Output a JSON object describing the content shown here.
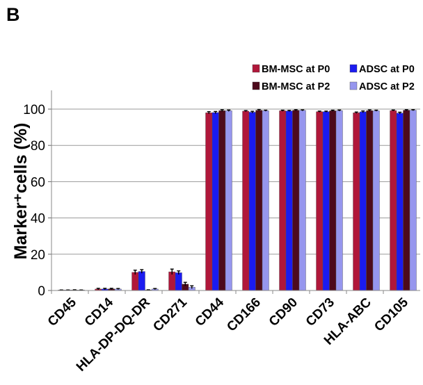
{
  "panel_label": "B",
  "chart_data": {
    "type": "bar",
    "title": "",
    "xlabel": "",
    "ylabel": "Marker⁺cells (%)",
    "ylim": [
      0,
      100
    ],
    "yticks": [
      0,
      20,
      40,
      60,
      80,
      100
    ],
    "grid": true,
    "legend_position": "top-right",
    "error_bars": true,
    "categories": [
      "CD45",
      "CD14",
      "HLA-DP-DQ-DR",
      "CD271",
      "CD44",
      "CD166",
      "CD90",
      "CD73",
      "HLA-ABC",
      "CD105"
    ],
    "series": [
      {
        "name": "BM-MSC at P0",
        "color": "#b0173a",
        "values": [
          0.1,
          0.8,
          10.0,
          10.3,
          98.0,
          98.9,
          99.1,
          98.6,
          98.0,
          99.2
        ],
        "errors": [
          0.2,
          0.4,
          1.2,
          1.5,
          0.6,
          0.3,
          0.3,
          0.3,
          0.4,
          0.3
        ]
      },
      {
        "name": "ADSC at P0",
        "color": "#1b1bf0",
        "values": [
          0.1,
          0.8,
          10.5,
          9.8,
          98.1,
          98.3,
          99.0,
          98.6,
          98.5,
          97.8
        ],
        "errors": [
          0.2,
          0.4,
          1.0,
          1.0,
          0.6,
          0.5,
          0.3,
          0.3,
          0.5,
          0.5
        ]
      },
      {
        "name": "BM-MSC at P2",
        "color": "#4d0a1c",
        "values": [
          0.2,
          0.9,
          0.2,
          3.5,
          99.2,
          99.4,
          99.4,
          99.1,
          99.2,
          99.4
        ],
        "errors": [
          0.2,
          0.3,
          0.2,
          1.0,
          0.5,
          0.4,
          0.3,
          0.3,
          0.4,
          0.3
        ]
      },
      {
        "name": "ADSC at P2",
        "color": "#9696ee",
        "values": [
          0.1,
          0.8,
          0.8,
          1.8,
          99.1,
          99.1,
          99.3,
          99.2,
          99.1,
          99.4
        ],
        "errors": [
          0.2,
          0.3,
          0.3,
          0.8,
          0.4,
          0.3,
          0.3,
          0.3,
          0.3,
          0.3
        ]
      }
    ]
  }
}
